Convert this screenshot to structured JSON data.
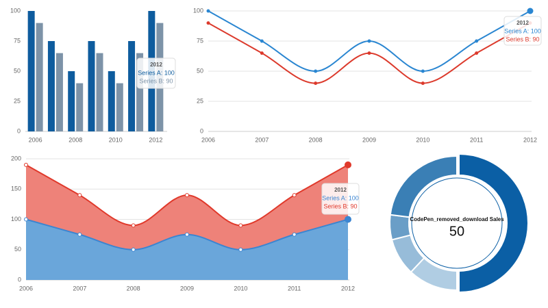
{
  "chart_data": [
    {
      "type": "bar",
      "categories": [
        "2006",
        null,
        "2008",
        null,
        "2010",
        null,
        "2012"
      ],
      "series": [
        {
          "color": "#0e5c9e",
          "values": [
            100,
            75,
            50,
            75,
            50,
            75,
            100
          ]
        },
        {
          "color": "#7d93a8",
          "values": [
            90,
            65,
            40,
            65,
            40,
            65,
            90
          ]
        }
      ],
      "ylim": [
        0,
        100
      ],
      "yticks": [
        0,
        25,
        50,
        75,
        100
      ],
      "grid": false,
      "tooltip": {
        "title": "2012",
        "lines": [
          "Series A: 100",
          "Series B: 90"
        ]
      }
    },
    {
      "type": "line",
      "categories": [
        "2006",
        "2007",
        "2008",
        "2009",
        "2010",
        "2011",
        "2012"
      ],
      "series": [
        {
          "color": "#2a86d1",
          "values": [
            100,
            75,
            50,
            75,
            50,
            75,
            100
          ]
        },
        {
          "color": "#dc3a2c",
          "values": [
            90,
            65,
            40,
            65,
            40,
            65,
            90
          ]
        }
      ],
      "ylim": [
        0,
        100
      ],
      "yticks": [
        0,
        25,
        50,
        75,
        100
      ],
      "grid": true,
      "tooltip": {
        "title": "2012",
        "lines": [
          "Series A: 100",
          "Series B: 90"
        ]
      }
    },
    {
      "type": "area",
      "stacked": true,
      "categories": [
        "2006",
        "2007",
        "2008",
        "2009",
        "2010",
        "2011",
        "2012"
      ],
      "series": [
        {
          "color": "#3b85d1",
          "fill": "#6aa6da",
          "values": [
            100,
            75,
            50,
            75,
            50,
            75,
            100
          ]
        },
        {
          "color": "#e0392b",
          "fill": "#ee8279",
          "values": [
            90,
            65,
            40,
            65,
            40,
            65,
            90
          ]
        }
      ],
      "ylim": [
        0,
        200
      ],
      "yticks": [
        0,
        50,
        100,
        150,
        200
      ],
      "grid": true,
      "tooltip": {
        "title": "2012",
        "lines": [
          "Series A: 100",
          "Series B: 90"
        ]
      }
    },
    {
      "type": "pie",
      "donut": true,
      "title": "CodePen_removed_download Sales",
      "center_value": 50,
      "values": [
        50,
        12,
        9,
        6,
        23
      ],
      "colors": [
        "#0b5fa5",
        "#b0cde3",
        "#97bcd9",
        "#6a9ec7",
        "#3a7fb5"
      ]
    }
  ]
}
